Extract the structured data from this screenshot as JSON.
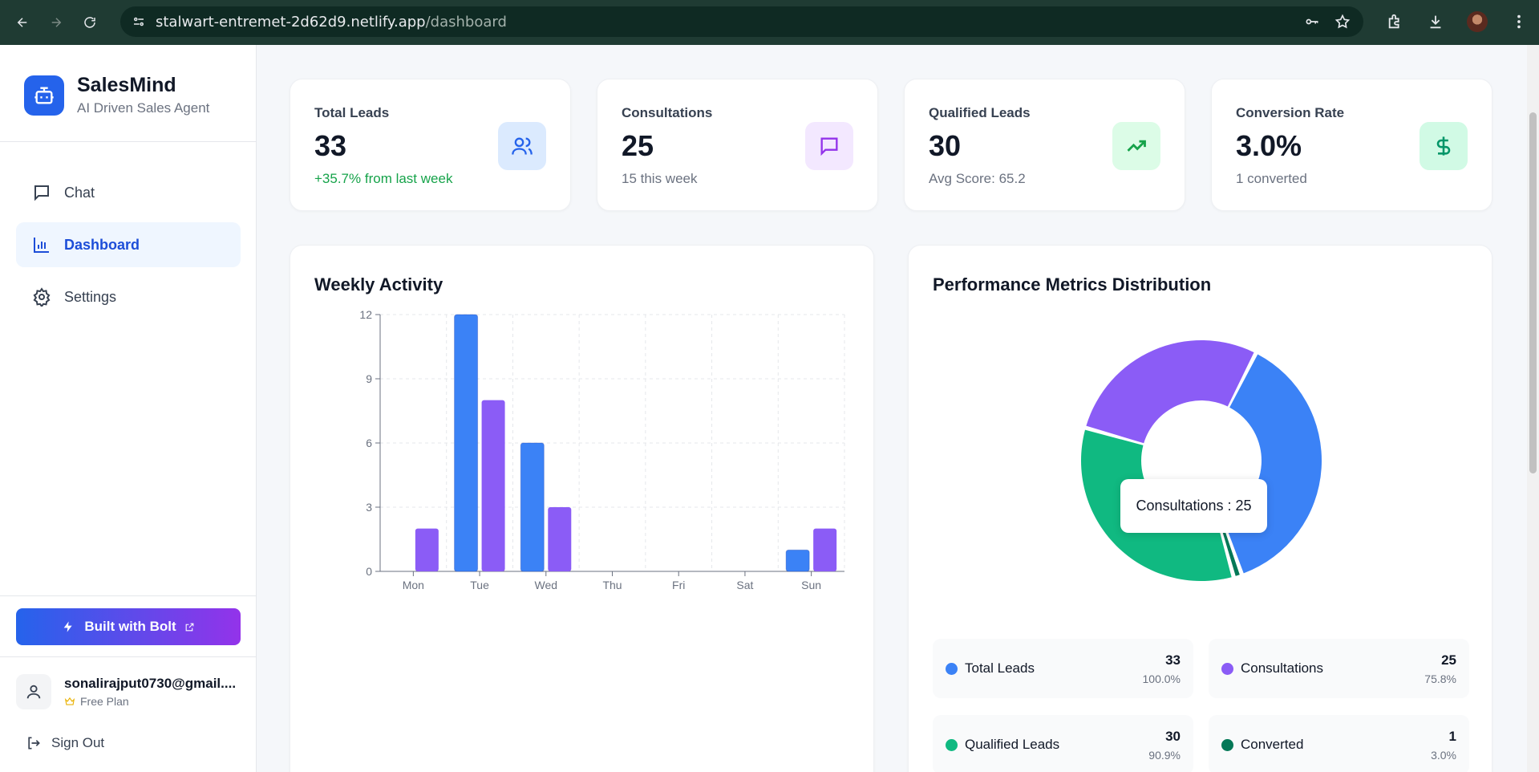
{
  "browser": {
    "url_host": "stalwart-entremet-2d62d9.netlify.app",
    "url_path": "/dashboard"
  },
  "sidebar": {
    "brand_name": "SalesMind",
    "brand_tagline": "AI Driven Sales Agent",
    "items": [
      {
        "label": "Chat",
        "icon": "chat-icon",
        "active": false
      },
      {
        "label": "Dashboard",
        "icon": "bar-chart-icon",
        "active": true
      },
      {
        "label": "Settings",
        "icon": "gear-icon",
        "active": false
      }
    ],
    "bolt_label": "Built with Bolt",
    "user_email": "sonalirajput0730@gmail....",
    "user_plan": "Free Plan",
    "signout_label": "Sign Out"
  },
  "stats": [
    {
      "title": "Total Leads",
      "value": "33",
      "sub": "+35.7% from last week",
      "icon": "users-icon",
      "icon_bg": "#dbeafe",
      "icon_color": "#2563eb"
    },
    {
      "title": "Consultations",
      "value": "25",
      "sub": "15 this week",
      "icon": "message-icon",
      "icon_bg": "#f3e8ff",
      "icon_color": "#9333ea"
    },
    {
      "title": "Qualified Leads",
      "value": "30",
      "sub": "Avg Score: 65.2",
      "icon": "trending-up-icon",
      "icon_bg": "#dcfce7",
      "icon_color": "#16a34a"
    },
    {
      "title": "Conversion Rate",
      "value": "3.0%",
      "sub": "1 converted",
      "icon": "dollar-icon",
      "icon_bg": "#d1fae5",
      "icon_color": "#059669"
    }
  ],
  "weekly": {
    "title": "Weekly Activity"
  },
  "performance": {
    "title": "Performance Metrics Distribution",
    "tooltip": "Consultations : 25",
    "legend": [
      {
        "label": "Total Leads",
        "value": "33",
        "pct": "100.0%",
        "color": "#3b82f6"
      },
      {
        "label": "Consultations",
        "value": "25",
        "pct": "75.8%",
        "color": "#8b5cf6"
      },
      {
        "label": "Qualified Leads",
        "value": "30",
        "pct": "90.9%",
        "color": "#10b981"
      },
      {
        "label": "Converted",
        "value": "1",
        "pct": "3.0%",
        "color": "#047857"
      }
    ]
  },
  "chart_data": [
    {
      "type": "bar",
      "categories": [
        "Mon",
        "Tue",
        "Wed",
        "Thu",
        "Fri",
        "Sat",
        "Sun"
      ],
      "series": [
        {
          "values": [
            0,
            12,
            6,
            0,
            0,
            0,
            1
          ],
          "color": "#3b82f6"
        },
        {
          "values": [
            2,
            8,
            3,
            0,
            0,
            0,
            2
          ],
          "color": "#8b5cf6"
        }
      ],
      "yticks": [
        0,
        3,
        6,
        9,
        12
      ],
      "ylim": [
        0,
        12
      ],
      "grid": true
    },
    {
      "type": "pie",
      "donut": true,
      "labels": [
        "Total Leads",
        "Converted",
        "Qualified Leads",
        "Consultations"
      ],
      "values": [
        33,
        1,
        30,
        25
      ],
      "colors": [
        "#3b82f6",
        "#047857",
        "#10b981",
        "#8b5cf6"
      ]
    }
  ]
}
